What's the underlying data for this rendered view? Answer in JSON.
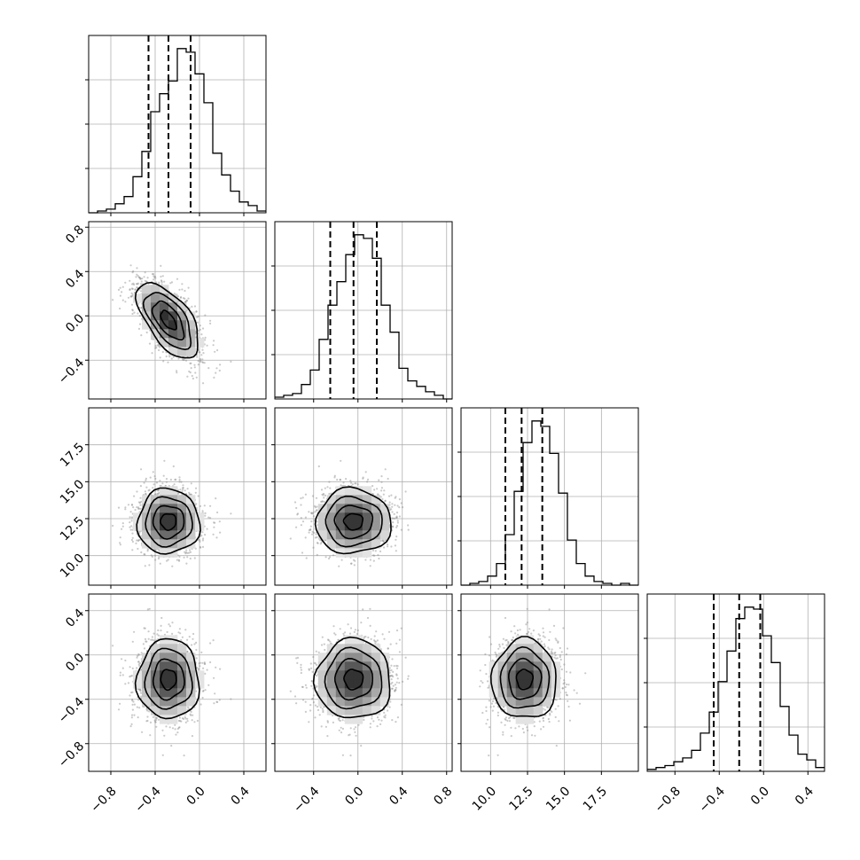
{
  "chart_data": {
    "type": "corner",
    "parameters": [
      {
        "ticks": [
          -0.8,
          -0.4,
          0.0,
          0.4
        ],
        "tick_labels": [
          "−0.8",
          "−0.4",
          "0.0",
          "0.4"
        ],
        "range": [
          -1.0,
          0.6
        ],
        "mean": -0.28,
        "std": 0.14,
        "quantiles": [
          -0.46,
          -0.28,
          -0.08
        ],
        "histogram": [
          0,
          1,
          2,
          5,
          9,
          20,
          34,
          56,
          66,
          73,
          91,
          89,
          77,
          61,
          33,
          21,
          12,
          6,
          4,
          1
        ]
      },
      {
        "ticks": [
          -0.4,
          0.0,
          0.4,
          0.8
        ],
        "tick_labels": [
          "−0.4",
          "0.0",
          "0.4",
          "0.8"
        ],
        "range": [
          -0.75,
          0.85
        ],
        "mean": -0.04,
        "std": 0.17,
        "quantiles": [
          -0.25,
          -0.04,
          0.17
        ],
        "histogram": [
          1,
          2,
          3,
          8,
          16,
          33,
          52,
          65,
          80,
          91,
          89,
          78,
          52,
          37,
          17,
          10,
          7,
          4,
          2,
          0
        ]
      },
      {
        "ticks": [
          10.0,
          12.5,
          15.0,
          17.5
        ],
        "tick_labels": [
          "10.0",
          "12.5",
          "15.0",
          "17.5"
        ],
        "range": [
          8.0,
          20.0
        ],
        "mean": 12.3,
        "std": 1.1,
        "quantiles": [
          11.0,
          12.1,
          13.5
        ],
        "histogram": [
          0,
          1,
          2,
          5,
          12,
          28,
          52,
          79,
          91,
          88,
          73,
          51,
          25,
          12,
          5,
          2,
          1,
          0,
          1,
          0
        ]
      },
      {
        "ticks": [
          -0.8,
          -0.4,
          0.0,
          0.4
        ],
        "tick_labels": [
          "−0.8",
          "−0.4",
          "0.0",
          "0.4"
        ],
        "range": [
          -1.05,
          0.55
        ],
        "mean": -0.22,
        "std": 0.18,
        "quantiles": [
          -0.45,
          -0.22,
          -0.03
        ],
        "histogram": [
          1,
          2,
          3,
          5,
          7,
          11,
          20,
          31,
          47,
          63,
          80,
          86,
          85,
          71,
          57,
          34,
          19,
          9,
          6,
          2
        ]
      }
    ],
    "correlations": [
      [
        1.0,
        -0.6,
        0.0,
        0.0
      ],
      [
        -0.6,
        1.0,
        0.0,
        0.0
      ],
      [
        0.0,
        0.0,
        1.0,
        0.0
      ],
      [
        0.0,
        0.0,
        0.0,
        1.0
      ]
    ],
    "quantile_levels": [
      0.16,
      0.5,
      0.84
    ],
    "grid": true,
    "histogram_style": "step",
    "show_datapoints": true,
    "show_density": true,
    "show_contours": true,
    "contour_levels_sigma": [
      0.5,
      1.0,
      1.5,
      2.0
    ]
  },
  "colors": {
    "frame": "#000000",
    "grid": "#b0b0b0",
    "points": "#8a8a8a",
    "density_dark": "#1a1a1a",
    "density_light": "#ffffff"
  }
}
